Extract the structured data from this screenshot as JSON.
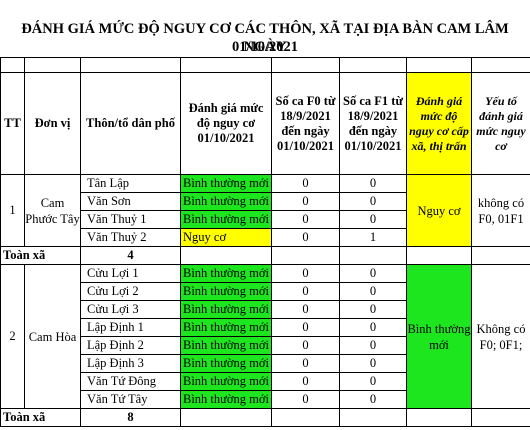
{
  "title_line1": "ĐÁNH GIÁ MỨC ĐỘ NGUY CƠ  CÁC THÔN, XÃ TẠI ĐỊA BÀN CAM LÂM NGÀY",
  "title_line2": "01/10/2021",
  "headers": {
    "tt": "TT",
    "don_vi": "Đơn vị",
    "thon": "Thôn/tổ dân phố",
    "danh_gia": "Đánh giá mức độ nguy cơ 01/10/2021",
    "f0": "Số ca F0 từ 18/9/2021 đến ngày 01/10/2021",
    "f1": "Số ca F1 từ 18/9/2021 đến ngày 01/10/2021",
    "cap_xa": "Đánh giá mức độ nguy cơ cấp xã, thị trấn",
    "yeu_to": "Yếu tố đánh giá mức nguy cơ"
  },
  "groups": [
    {
      "tt": "1",
      "don_vi": "Cam Phước Tây",
      "rows": [
        {
          "thon": "Tân Lập",
          "status": "Bình thường mới",
          "level": "green",
          "f0": "0",
          "f1": "0"
        },
        {
          "thon": "Văn Sơn",
          "status": "Bình thường mới",
          "level": "green",
          "f0": "0",
          "f1": "0"
        },
        {
          "thon": "Văn Thuỷ 1",
          "status": "Bình thường mới",
          "level": "green",
          "f0": "0",
          "f1": "0"
        },
        {
          "thon": "Văn Thuỷ 2",
          "status": "Nguy cơ",
          "level": "yellow",
          "f0": "0",
          "f1": "1"
        }
      ],
      "cap_xa": "Nguy cơ",
      "cap_xa_level": "yellow",
      "yeu_to": "không có F0, 01F1",
      "total_label": "Toàn xã",
      "total": "4"
    },
    {
      "tt": "2",
      "don_vi": "Cam Hòa",
      "rows": [
        {
          "thon": "Cửu Lợi 1",
          "status": "Bình thường mới",
          "level": "green",
          "f0": "0",
          "f1": "0"
        },
        {
          "thon": "Cửu Lợi 2",
          "status": "Bình thường mới",
          "level": "green",
          "f0": "0",
          "f1": "0"
        },
        {
          "thon": "Cửu Lợi 3",
          "status": "Bình thường mới",
          "level": "green",
          "f0": "0",
          "f1": "0"
        },
        {
          "thon": "Lập Định 1",
          "status": "Bình thường mới",
          "level": "green",
          "f0": "0",
          "f1": "0"
        },
        {
          "thon": "Lập Định 2",
          "status": "Bình thường mới",
          "level": "green",
          "f0": "0",
          "f1": "0"
        },
        {
          "thon": "Lập Định 3",
          "status": "Bình thường mới",
          "level": "green",
          "f0": "0",
          "f1": "0"
        },
        {
          "thon": "Văn Tứ Đông",
          "status": "Bình thường mới",
          "level": "green",
          "f0": "0",
          "f1": "0"
        },
        {
          "thon": "Văn Tứ Tây",
          "status": "Bình thường mới",
          "level": "green",
          "f0": "0",
          "f1": "0"
        }
      ],
      "cap_xa": "Bình thường mới",
      "cap_xa_level": "green",
      "yeu_to": "Không có F0; 0F1;",
      "total_label": "Toàn xã",
      "total": "8"
    }
  ],
  "colors": {
    "green": "#1ee61e",
    "yellow": "#ffff00"
  }
}
